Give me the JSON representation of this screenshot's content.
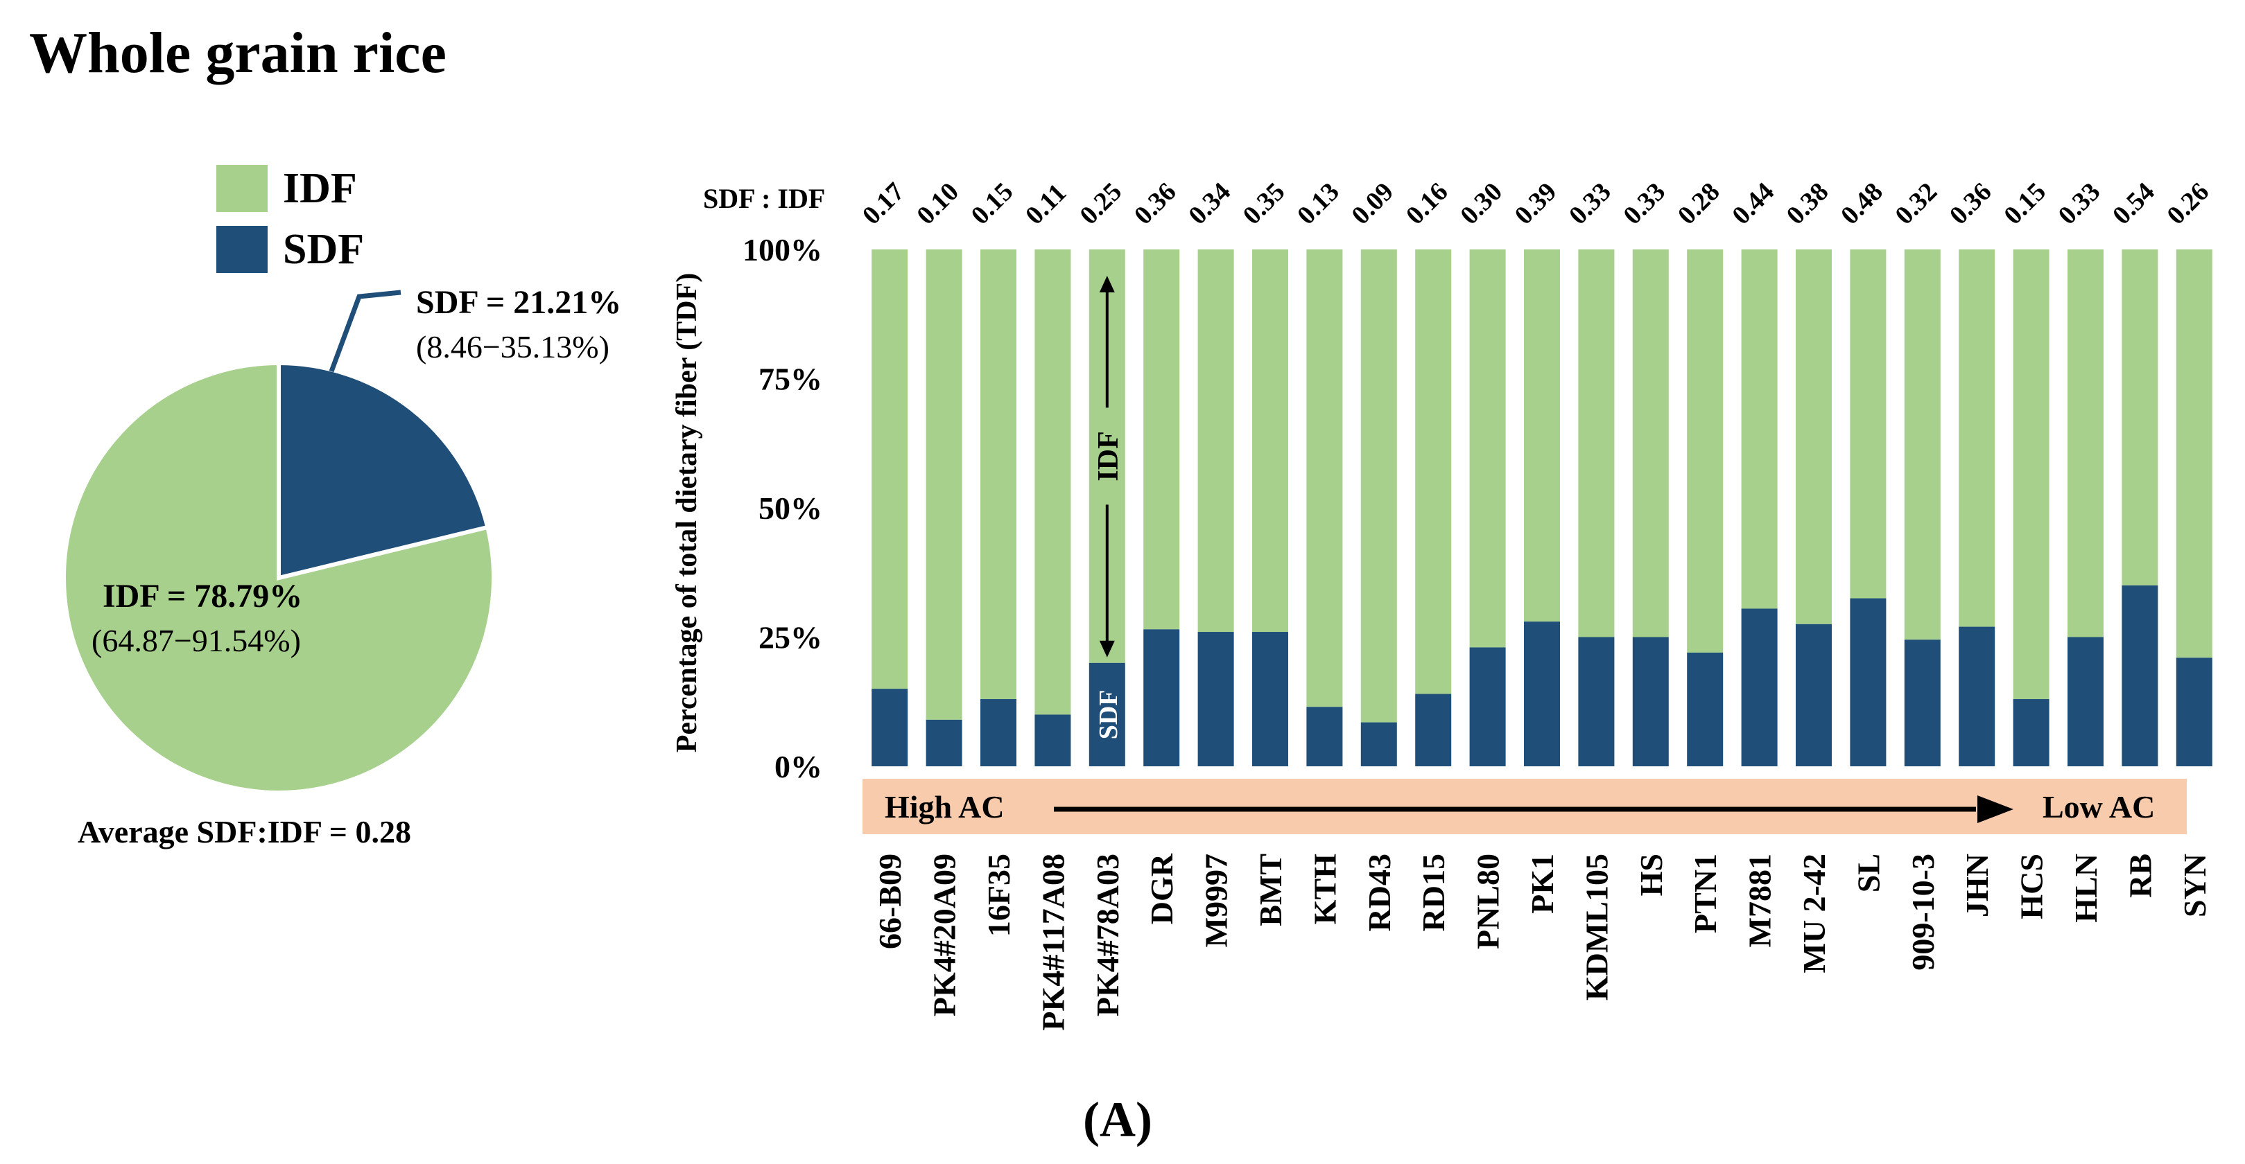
{
  "title": "Whole grain rice",
  "panel_label": "(A)",
  "colors": {
    "idf": "#a8d08d",
    "sdf": "#1f4e79",
    "arrow_band": "#f8cbad",
    "text": "#111111",
    "white": "#ffffff"
  },
  "chart_data": [
    {
      "type": "pie",
      "legend": [
        "IDF",
        "SDF"
      ],
      "slices": [
        {
          "name": "SDF",
          "value": 21.21,
          "label": "SDF = 21.21%",
          "range": "(8.46−35.13%)"
        },
        {
          "name": "IDF",
          "value": 78.79,
          "label": "IDF = 78.79%",
          "range": "(64.87−91.54%)"
        }
      ],
      "footnote": "Average SDF:IDF = 0.28"
    },
    {
      "type": "bar",
      "stacked": true,
      "ylabel": "Percentage of total dietary fiber (TDF)",
      "ylim": [
        0,
        100
      ],
      "y_ticks": [
        "0%",
        "25%",
        "50%",
        "75%",
        "100%"
      ],
      "ratio_header": "SDF : IDF",
      "categories": [
        "66-B09",
        "PK4#20A09",
        "16F35",
        "PK4#117A08",
        "PK4#78A03",
        "DGR",
        "M9997",
        "BMT",
        "KTH",
        "RD43",
        "RD15",
        "PNL80",
        "PK1",
        "KDML105",
        "HS",
        "PTN1",
        "M7881",
        "MU 2-42",
        "SL",
        "909-10-3",
        "JHN",
        "HCS",
        "HLN",
        "RB",
        "SYN"
      ],
      "series": [
        {
          "name": "SDF",
          "values": [
            15,
            9,
            13,
            10,
            20,
            26.5,
            26,
            26,
            11.5,
            8.5,
            14,
            23,
            28,
            25,
            25,
            22,
            30.5,
            27.5,
            32.5,
            24.5,
            27,
            13,
            25,
            35,
            21
          ]
        },
        {
          "name": "IDF",
          "values": [
            85,
            91,
            87,
            90,
            80,
            73.5,
            74,
            74,
            88.5,
            91.5,
            86,
            77,
            72,
            75,
            75,
            78,
            69.5,
            72.5,
            67.5,
            75.5,
            73,
            87,
            75,
            65,
            79
          ]
        }
      ],
      "ratios": [
        "0.17",
        "0.10",
        "0.15",
        "0.11",
        "0.25",
        "0.36",
        "0.34",
        "0.35",
        "0.13",
        "0.09",
        "0.16",
        "0.30",
        "0.39",
        "0.33",
        "0.33",
        "0.28",
        "0.44",
        "0.38",
        "0.48",
        "0.32",
        "0.36",
        "0.15",
        "0.33",
        "0.54",
        "0.26"
      ],
      "annotations": {
        "idf_label": "IDF",
        "sdf_label": "SDF",
        "annotated_index": 4
      },
      "arrow_band": {
        "left": "High AC",
        "right": "Low AC"
      }
    }
  ]
}
